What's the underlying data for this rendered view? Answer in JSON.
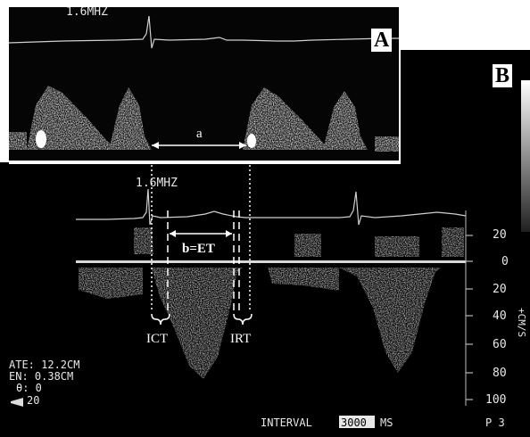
{
  "panel_a": {
    "letter": "A",
    "freq_label": "1.6MHZ",
    "interval_label": "a"
  },
  "panel_b": {
    "letter": "B",
    "freq_label": "1.6MHZ",
    "et_label": "b=ET",
    "ict_label": "ICT",
    "irt_label": "IRT",
    "scale_ticks": [
      "20",
      "0",
      "20",
      "40",
      "60",
      "80",
      "100"
    ],
    "scale_unit": "+CM/S",
    "interval_text": "INTERVAL",
    "interval_value": "3000",
    "interval_unit": "MS",
    "bottom_right": "P   3",
    "info_lines": [
      "ATE: 12.2CM",
      "EN: 0.38CM",
      "θ: 0",
      "20"
    ]
  }
}
